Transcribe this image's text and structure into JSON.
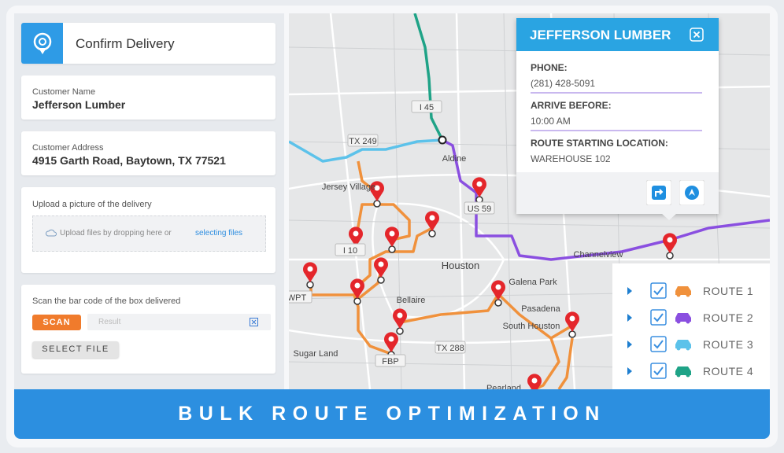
{
  "header": {
    "title": "Confirm Delivery"
  },
  "form": {
    "customer_name": {
      "label": "Customer Name",
      "value": "Jefferson Lumber"
    },
    "customer_address": {
      "label": "Customer Address",
      "value": "4915 Garth Road, Baytown, TX 77521"
    },
    "upload": {
      "label": "Upload a picture of the delivery",
      "hint": "Upload files by dropping here or",
      "link": "selecting files"
    },
    "scan": {
      "label": "Scan the bar code of the box delivered",
      "button": "SCAN",
      "placeholder": "Result",
      "file_button": "SELECT FILE"
    }
  },
  "popup": {
    "title": "JEFFERSON LUMBER",
    "fields": [
      {
        "label": "PHONE:",
        "value": "(281) 428-5091"
      },
      {
        "label": "ARRIVE BEFORE:",
        "value": "10:00 AM"
      },
      {
        "label": "ROUTE STARTING LOCATION:",
        "value": "WAREHOUSE 102"
      }
    ]
  },
  "routes": [
    {
      "name": "ROUTE 1",
      "color": "#f0913c"
    },
    {
      "name": "ROUTE 2",
      "color": "#8a4fe0"
    },
    {
      "name": "ROUTE 3",
      "color": "#5cc2ea"
    },
    {
      "name": "ROUTE 4",
      "color": "#1fa387"
    }
  ],
  "map": {
    "labels": [
      "TX 249",
      "I 45",
      "Jersey Village",
      "Aldine",
      "US 59",
      "I 10",
      "Houston",
      "Galena Park",
      "Channelview",
      "Pasadena",
      "Bellaire",
      "South Houston",
      "TX 288",
      "Sugar Land",
      "WPT",
      "FBP",
      "Pearland"
    ]
  },
  "banner": {
    "title": "BULK ROUTE OPTIMIZATION"
  }
}
